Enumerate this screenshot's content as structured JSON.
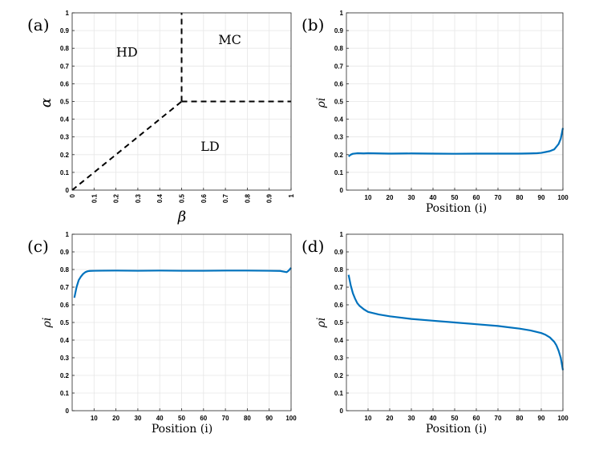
{
  "chart_data": [
    {
      "id": "a",
      "type": "line",
      "panel_label": "(a)",
      "xlabel": "β",
      "ylabel": "α",
      "xlim": [
        0,
        1
      ],
      "ylim": [
        0,
        1
      ],
      "xticks": [
        "0",
        "0.1",
        "0.2",
        "0.3",
        "0.4",
        "0.5",
        "0.6",
        "0.7",
        "0.8",
        "0.9",
        "1"
      ],
      "yticks": [
        "0",
        "0.1",
        "0.2",
        "0.3",
        "0.4",
        "0.5",
        "0.6",
        "0.7",
        "0.8",
        "0.9",
        "1"
      ],
      "grid": true,
      "series": [
        {
          "name": "HD-LD boundary",
          "x": [
            0,
            0.5
          ],
          "y": [
            0,
            0.5
          ]
        },
        {
          "name": "HD-MC boundary",
          "x": [
            0.5,
            0.5
          ],
          "y": [
            0.5,
            1
          ]
        },
        {
          "name": "LD-MC boundary",
          "x": [
            0.5,
            1
          ],
          "y": [
            0.5,
            0.5
          ]
        }
      ],
      "annotations": [
        {
          "text": "HD",
          "x": 0.25,
          "y": 0.78
        },
        {
          "text": "MC",
          "x": 0.72,
          "y": 0.85
        },
        {
          "text": "LD",
          "x": 0.63,
          "y": 0.25
        }
      ]
    },
    {
      "id": "b",
      "type": "line",
      "panel_label": "(b)",
      "xlabel": "Position (i)",
      "ylabel": "ρi",
      "xlim": [
        0,
        100
      ],
      "ylim": [
        0,
        1
      ],
      "xticks": [
        "10",
        "20",
        "30",
        "40",
        "50",
        "60",
        "70",
        "80",
        "90",
        "100"
      ],
      "yticks": [
        "0",
        "0.1",
        "0.2",
        "0.3",
        "0.4",
        "0.5",
        "0.6",
        "0.7",
        "0.8",
        "0.9",
        "1"
      ],
      "grid": true,
      "series": [
        {
          "name": "density",
          "x": [
            1,
            2,
            3,
            5,
            8,
            10,
            20,
            30,
            40,
            50,
            60,
            70,
            80,
            85,
            88,
            90,
            92,
            94,
            96,
            98,
            99,
            100
          ],
          "y": [
            0.19,
            0.2,
            0.205,
            0.208,
            0.207,
            0.208,
            0.206,
            0.207,
            0.206,
            0.205,
            0.206,
            0.206,
            0.206,
            0.207,
            0.208,
            0.21,
            0.215,
            0.22,
            0.23,
            0.26,
            0.29,
            0.35
          ]
        }
      ]
    },
    {
      "id": "c",
      "type": "line",
      "panel_label": "(c)",
      "xlabel": "Position (i)",
      "ylabel": "ρi",
      "xlim": [
        0,
        100
      ],
      "ylim": [
        0,
        1
      ],
      "xticks": [
        "10",
        "20",
        "30",
        "40",
        "50",
        "60",
        "70",
        "80",
        "90",
        "100"
      ],
      "yticks": [
        "0",
        "0.1",
        "0.2",
        "0.3",
        "0.4",
        "0.5",
        "0.6",
        "0.7",
        "0.8",
        "0.9",
        "1"
      ],
      "grid": true,
      "series": [
        {
          "name": "density",
          "x": [
            1,
            2,
            3,
            4,
            5,
            6,
            7,
            8,
            10,
            20,
            30,
            40,
            50,
            60,
            70,
            80,
            90,
            95,
            98,
            99,
            100
          ],
          "y": [
            0.64,
            0.7,
            0.74,
            0.76,
            0.775,
            0.785,
            0.79,
            0.792,
            0.793,
            0.794,
            0.793,
            0.794,
            0.793,
            0.793,
            0.794,
            0.794,
            0.793,
            0.792,
            0.785,
            0.795,
            0.81
          ]
        }
      ]
    },
    {
      "id": "d",
      "type": "line",
      "panel_label": "(d)",
      "xlabel": "Position (i)",
      "ylabel": "ρi",
      "xlim": [
        0,
        100
      ],
      "ylim": [
        0,
        1
      ],
      "xticks": [
        "10",
        "20",
        "30",
        "40",
        "50",
        "60",
        "70",
        "80",
        "90",
        "100"
      ],
      "yticks": [
        "0",
        "0.1",
        "0.2",
        "0.3",
        "0.4",
        "0.5",
        "0.6",
        "0.7",
        "0.8",
        "0.9",
        "1"
      ],
      "grid": true,
      "series": [
        {
          "name": "density",
          "x": [
            1,
            2,
            3,
            4,
            5,
            6,
            8,
            10,
            15,
            20,
            30,
            40,
            50,
            60,
            70,
            80,
            85,
            90,
            92,
            94,
            96,
            97,
            98,
            99,
            100
          ],
          "y": [
            0.77,
            0.71,
            0.665,
            0.635,
            0.61,
            0.595,
            0.575,
            0.56,
            0.545,
            0.535,
            0.52,
            0.51,
            0.5,
            0.49,
            0.48,
            0.465,
            0.455,
            0.44,
            0.43,
            0.415,
            0.39,
            0.37,
            0.34,
            0.3,
            0.23
          ]
        }
      ]
    }
  ]
}
